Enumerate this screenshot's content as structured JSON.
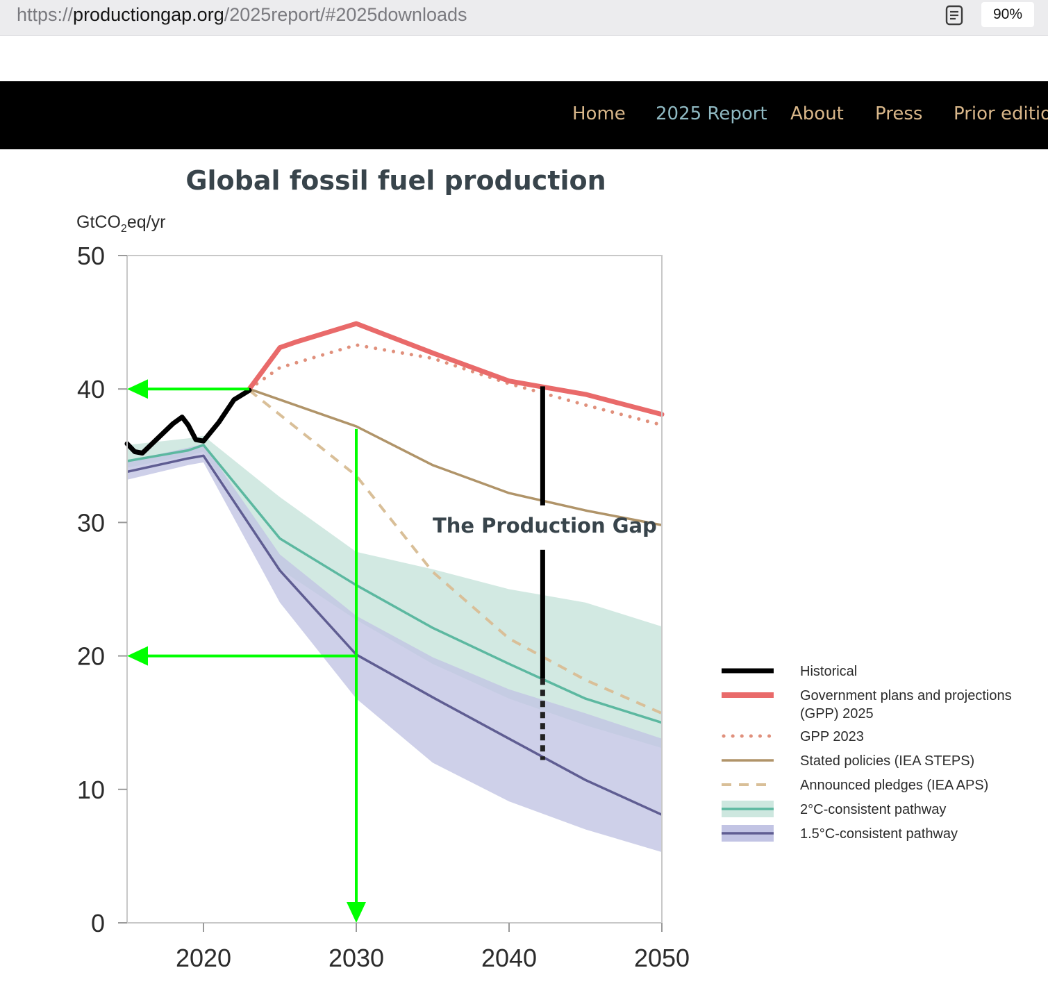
{
  "browser": {
    "url_scheme": "https://",
    "url_host": "productiongap.org",
    "url_path": "/2025report/#2025downloads",
    "zoom": "90%",
    "reader_icon": "reader-view-icon"
  },
  "nav": {
    "items": [
      {
        "label": "Home"
      },
      {
        "label": "2025 Report",
        "active": true
      },
      {
        "label": "About"
      },
      {
        "label": "Press"
      },
      {
        "label": "Prior editio"
      }
    ],
    "colors": {
      "background": "#000000",
      "item": "#d9b78a",
      "active": "#8fb9c2"
    }
  },
  "chart_data": {
    "type": "line",
    "title": "Global fossil fuel production",
    "ylabel_main": "GtCO",
    "ylabel_sub": "2",
    "ylabel_tail": "eq/yr",
    "xlim": [
      2015,
      2050
    ],
    "ylim": [
      0,
      50
    ],
    "x_ticks": [
      2020,
      2030,
      2040,
      2050
    ],
    "y_ticks": [
      0,
      10,
      20,
      30,
      40,
      50
    ],
    "annotation": "The Production Gap",
    "colors": {
      "historical": "#000000",
      "gpp2025": "#e96a6a",
      "gpp2023": "#e0907c",
      "steps": "#b09469",
      "aps": "#d9bf98",
      "c2_line": "#5cb8a0",
      "c2_band": "#cde7df",
      "c15_line": "#5f5d92",
      "c15_band": "#c2c4e4",
      "overlay_arrow": "#00ff00",
      "frame": "#c8c8c8"
    },
    "series": [
      {
        "key": "historical",
        "name": "Historical",
        "x": [
          2015,
          2015.5,
          2016,
          2017,
          2018,
          2018.6,
          2019,
          2019.5,
          2020,
          2020.5,
          2021,
          2022,
          2023
        ],
        "y": [
          35.9,
          35.3,
          35.2,
          36.3,
          37.4,
          37.9,
          37.3,
          36.2,
          36.1,
          36.8,
          37.5,
          39.2,
          39.9
        ]
      },
      {
        "key": "gpp2025",
        "name": "Government plans and projections (GPP) 2025",
        "x": [
          2023,
          2025,
          2026,
          2030,
          2035,
          2040,
          2045,
          2050
        ],
        "y": [
          40.0,
          43.1,
          43.5,
          44.9,
          42.7,
          40.6,
          39.6,
          38.1
        ]
      },
      {
        "key": "gpp2023",
        "name": "GPP 2023",
        "x": [
          2023,
          2025,
          2030,
          2035,
          2040,
          2045,
          2050
        ],
        "y": [
          40.0,
          41.6,
          43.3,
          42.3,
          40.4,
          38.8,
          37.3
        ]
      },
      {
        "key": "steps",
        "name": "Stated policies (IEA STEPS)",
        "x": [
          2023,
          2030,
          2035,
          2040,
          2045,
          2050
        ],
        "y": [
          40.0,
          37.2,
          34.3,
          32.2,
          30.9,
          29.8
        ]
      },
      {
        "key": "aps",
        "name": "Announced pledges (IEA APS)",
        "x": [
          2023,
          2030,
          2035,
          2040,
          2045,
          2050
        ],
        "y": [
          39.9,
          33.5,
          26.3,
          21.3,
          18.2,
          15.7
        ]
      },
      {
        "key": "c2",
        "name": "2°C-consistent pathway",
        "x": [
          2015,
          2019,
          2020,
          2025,
          2030,
          2035,
          2040,
          2045,
          2050
        ],
        "y": [
          34.6,
          35.4,
          35.8,
          28.8,
          25.3,
          22.1,
          19.4,
          16.8,
          15.0
        ],
        "band_low": [
          34.1,
          35.0,
          35.3,
          26.5,
          22.7,
          19.4,
          16.8,
          14.8,
          13.1
        ],
        "band_high": [
          35.8,
          36.3,
          36.5,
          31.9,
          27.8,
          26.5,
          25.0,
          24.0,
          22.2
        ]
      },
      {
        "key": "c15",
        "name": "1.5°C-consistent pathway",
        "x": [
          2015,
          2019,
          2020,
          2025,
          2030,
          2035,
          2040,
          2045,
          2050
        ],
        "y": [
          33.8,
          34.8,
          35.0,
          26.4,
          20.1,
          16.9,
          13.8,
          10.7,
          8.1
        ],
        "band_low": [
          33.2,
          34.3,
          34.5,
          24.0,
          16.8,
          12.0,
          9.1,
          7.0,
          5.3
        ],
        "band_high": [
          34.6,
          35.6,
          35.9,
          27.6,
          23.0,
          19.9,
          17.5,
          15.7,
          13.8
        ]
      }
    ],
    "gap_bar": {
      "x": 2042.2,
      "solid_from": 18.3,
      "solid_to": 40.2,
      "dotted_from": 12.2,
      "dotted_to": 18.3
    },
    "overlay_arrows": [
      {
        "from": [
          2023,
          40
        ],
        "to": [
          2015,
          40
        ]
      },
      {
        "from": [
          2030,
          20
        ],
        "to": [
          2015,
          20
        ]
      },
      {
        "from": [
          2030,
          37
        ],
        "to": [
          2030,
          0
        ]
      }
    ],
    "legend_placement": "right-bottom",
    "legend": [
      {
        "key": "historical",
        "line1": "Historical",
        "line2": ""
      },
      {
        "key": "gpp2025",
        "line1": "Government plans and projections",
        "line2": "(GPP) 2025"
      },
      {
        "key": "gpp2023",
        "line1": "GPP 2023",
        "line2": ""
      },
      {
        "key": "steps",
        "line1": "Stated policies (IEA STEPS)",
        "line2": ""
      },
      {
        "key": "aps",
        "line1": "Announced pledges (IEA APS)",
        "line2": ""
      },
      {
        "key": "c2",
        "line1": "2°C-consistent pathway",
        "line2": ""
      },
      {
        "key": "c15",
        "line1": "1.5°C-consistent pathway",
        "line2": ""
      }
    ]
  }
}
